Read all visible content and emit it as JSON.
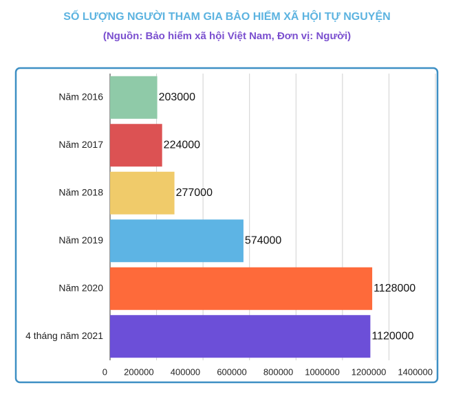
{
  "chart_data": {
    "type": "hbar",
    "title": "SỐ LƯỢNG NGƯỜI THAM GIA BẢO HIỂM XÃ HỘI TỰ NGUYỆN",
    "subtitle": "(Nguồn: Bảo hiểm xã hội Việt Nam, Đơn vị: Người)",
    "categories": [
      "Năm 2016",
      "Năm 2017",
      "Năm 2018",
      "Năm 2019",
      "Năm 2020",
      "4 tháng năm 2021"
    ],
    "values": [
      203000,
      224000,
      277000,
      574000,
      1128000,
      1120000
    ],
    "colors": [
      "#8fcaa8",
      "#dc5253",
      "#f0cb6a",
      "#5db4e4",
      "#fe6a3a",
      "#6c4fd8"
    ],
    "xlim": [
      0,
      1400000
    ],
    "xticks": [
      0,
      200000,
      400000,
      600000,
      800000,
      1000000,
      1200000,
      1400000
    ],
    "grid": true
  }
}
